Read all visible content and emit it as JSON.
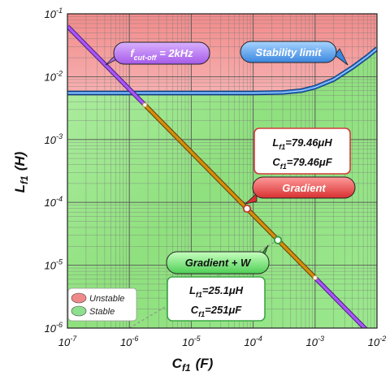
{
  "chart_data": {
    "type": "line",
    "x_axis": {
      "label": "C",
      "label_sub": "f1",
      "unit": "(F)",
      "scale": "log",
      "range": [
        1e-07,
        0.01
      ],
      "ticks": [
        {
          "base": "10",
          "exp": "-7"
        },
        {
          "base": "10",
          "exp": "-6"
        },
        {
          "base": "10",
          "exp": "-5"
        },
        {
          "base": "10",
          "exp": "-4"
        },
        {
          "base": "10",
          "exp": "-3"
        },
        {
          "base": "10",
          "exp": "-2"
        }
      ]
    },
    "y_axis": {
      "label": "L",
      "label_sub": "f1",
      "unit": "(H)",
      "scale": "log",
      "range": [
        1e-06,
        0.1
      ],
      "ticks": [
        {
          "base": "10",
          "exp": "-6"
        },
        {
          "base": "10",
          "exp": "-5"
        },
        {
          "base": "10",
          "exp": "-4"
        },
        {
          "base": "10",
          "exp": "-3"
        },
        {
          "base": "10",
          "exp": "-2"
        },
        {
          "base": "10",
          "exp": "-1"
        }
      ]
    },
    "grid": true,
    "regions": [
      {
        "name": "Unstable",
        "color": "#f08a8a"
      },
      {
        "name": "Stable",
        "color": "#8ee08e"
      }
    ],
    "series": [
      {
        "name": "f_cut-off = 2kHz",
        "color": "#a855f7",
        "x": [
          1e-07,
          0.01
        ],
        "y": [
          0.0633,
          6.33e-07
        ]
      },
      {
        "color": "#d4900a",
        "x": [
          1.78e-06,
          0.001
        ],
        "y": [
          0.00355,
          6.33e-06
        ]
      },
      {
        "name": "Stability limit",
        "color": "#2e7ad9",
        "x": [
          1e-07,
          1e-06,
          1e-05,
          0.0001,
          0.0003,
          0.0006,
          0.001,
          0.002,
          0.004,
          0.007,
          0.01
        ],
        "y": [
          0.0055,
          0.0055,
          0.0055,
          0.0055,
          0.0056,
          0.006,
          0.0068,
          0.009,
          0.014,
          0.021,
          0.028
        ]
      },
      {
        "style": "dashed",
        "color": "#888888",
        "x": [
          1e-06,
          0.000251
        ],
        "y": [
          1e-06,
          2.51e-05
        ]
      }
    ],
    "points": [
      {
        "name": "Gradient",
        "x": 7.946e-05,
        "y": 7.946e-05,
        "label_L": "79.46μH",
        "label_C": "79.46μF"
      },
      {
        "name": "Gradient + W",
        "x": 0.000251,
        "y": 2.51e-05,
        "label_L": "25.1μH",
        "label_C": "251μF"
      }
    ],
    "annotations": {
      "cutoff": {
        "f": "f",
        "sub": "cut-off",
        "rest": " = 2kHz"
      },
      "stability_limit": "Stability limit",
      "gradient": "Gradient",
      "gradient_w": "Gradient + W",
      "box1_line1": {
        "var": "L",
        "sub": "f1",
        "val": "=79.46μH"
      },
      "box1_line2": {
        "var": "C",
        "sub": "f1",
        "val": "=79.46μF"
      },
      "box2_line1": {
        "var": "L",
        "sub": "f1",
        "val": "=25.1μH"
      },
      "box2_line2": {
        "var": "C",
        "sub": "f1",
        "val": "=251μF"
      }
    },
    "legend": {
      "position": "bottom-left",
      "items": [
        "Unstable",
        "Stable"
      ]
    }
  }
}
